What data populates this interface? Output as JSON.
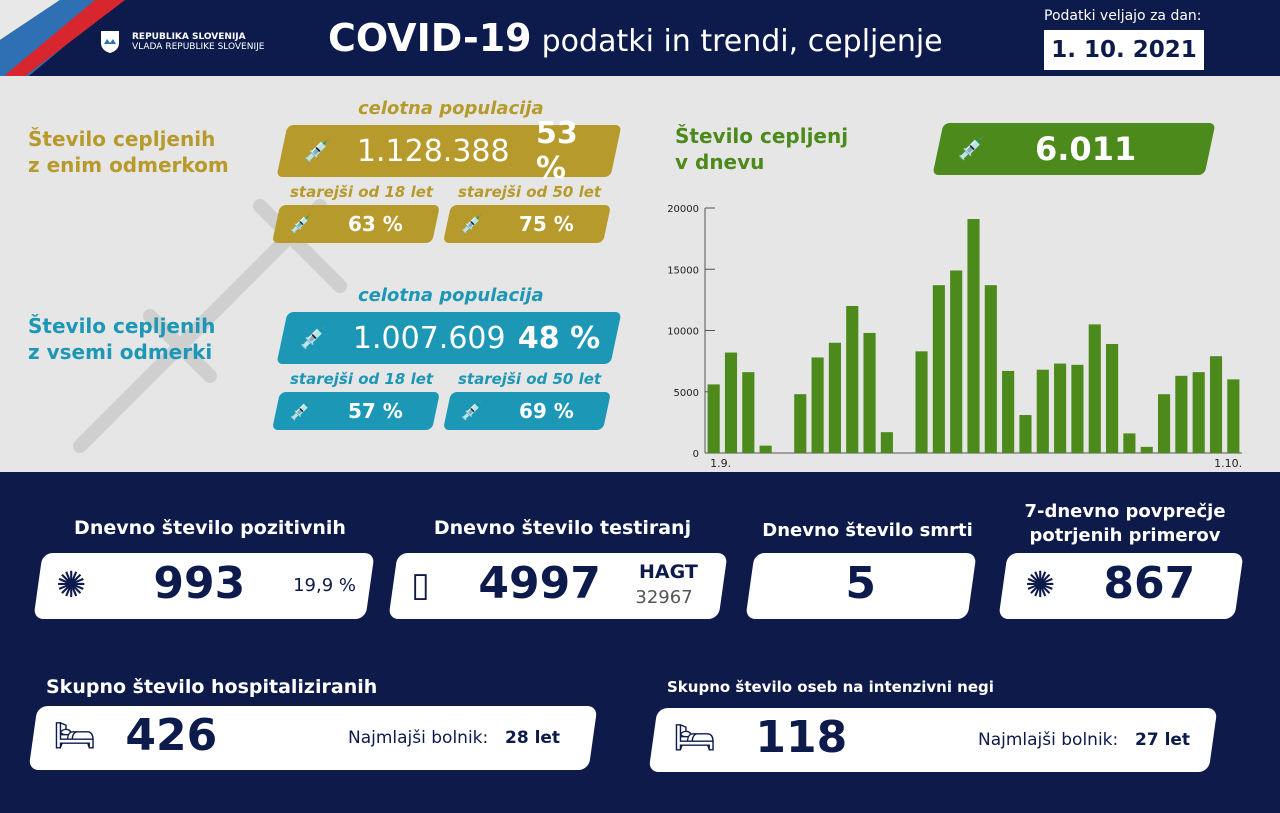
{
  "header": {
    "org1": "REPUBLIKA SLOVENIJA",
    "org2": "VLADA REPUBLIKE SLOVENIJE",
    "title_bold": "COVID-19",
    "title_rest": "podatki in trendi, cepljenje",
    "date_label": "Podatki veljajo za dan:",
    "date": "1. 10. 2021"
  },
  "one_dose": {
    "title1": "Število cepljenih",
    "title2": "z enim odmerkom",
    "pop_label": "celotna populacija",
    "count": "1.128.388",
    "pct": "53 %",
    "sub18_label": "starejši od 18 let",
    "sub18": "63 %",
    "sub50_label": "starejši od 50 let",
    "sub50": "75 %"
  },
  "full": {
    "title1": "Število cepljenih",
    "title2": "z vsemi odmerki",
    "pop_label": "celotna populacija",
    "count": "1.007.609",
    "pct": "48 %",
    "sub18_label": "starejši od 18 let",
    "sub18": "57 %",
    "sub50_label": "starejši od 50 let",
    "sub50": "69 %"
  },
  "daily": {
    "title1": "Število cepljenj",
    "title2": "v dnevu",
    "value": "6.011"
  },
  "chart_data": {
    "type": "bar",
    "title": "Število cepljenj v dnevu",
    "x_start_label": "1.9.",
    "x_end_label": "1.10.",
    "yticks": [
      0,
      5000,
      10000,
      15000,
      20000
    ],
    "ylim": [
      0,
      20000
    ],
    "color": "#4c8a1c",
    "values": [
      5600,
      8200,
      6600,
      600,
      0,
      4800,
      7800,
      9000,
      12000,
      9800,
      1700,
      0,
      8300,
      13700,
      14900,
      19100,
      13700,
      6700,
      3100,
      6800,
      7300,
      7200,
      10500,
      8900,
      1600,
      500,
      4800,
      6300,
      6600,
      7900,
      6011
    ]
  },
  "stats": {
    "pos_label": "Dnevno število pozitivnih",
    "pos": "993",
    "pos_pct": "19,9 %",
    "test_label": "Dnevno število testiranj",
    "test": "4997",
    "hagt_label": "HAGT",
    "hagt": "32967",
    "death_label": "Dnevno število smrti",
    "death": "5",
    "avg_label1": "7-dnevno povprečje",
    "avg_label2": "potrjenih primerov",
    "avg": "867",
    "hosp_label": "Skupno število hospitaliziranih",
    "hosp": "426",
    "hosp_young_label": "Najmlajši bolnik:",
    "hosp_young": "28 let",
    "icu_label": "Skupno število oseb na intenzivni negi",
    "icu": "118",
    "icu_young_label": "Najmlajši bolnik:",
    "icu_young": "27 let"
  }
}
